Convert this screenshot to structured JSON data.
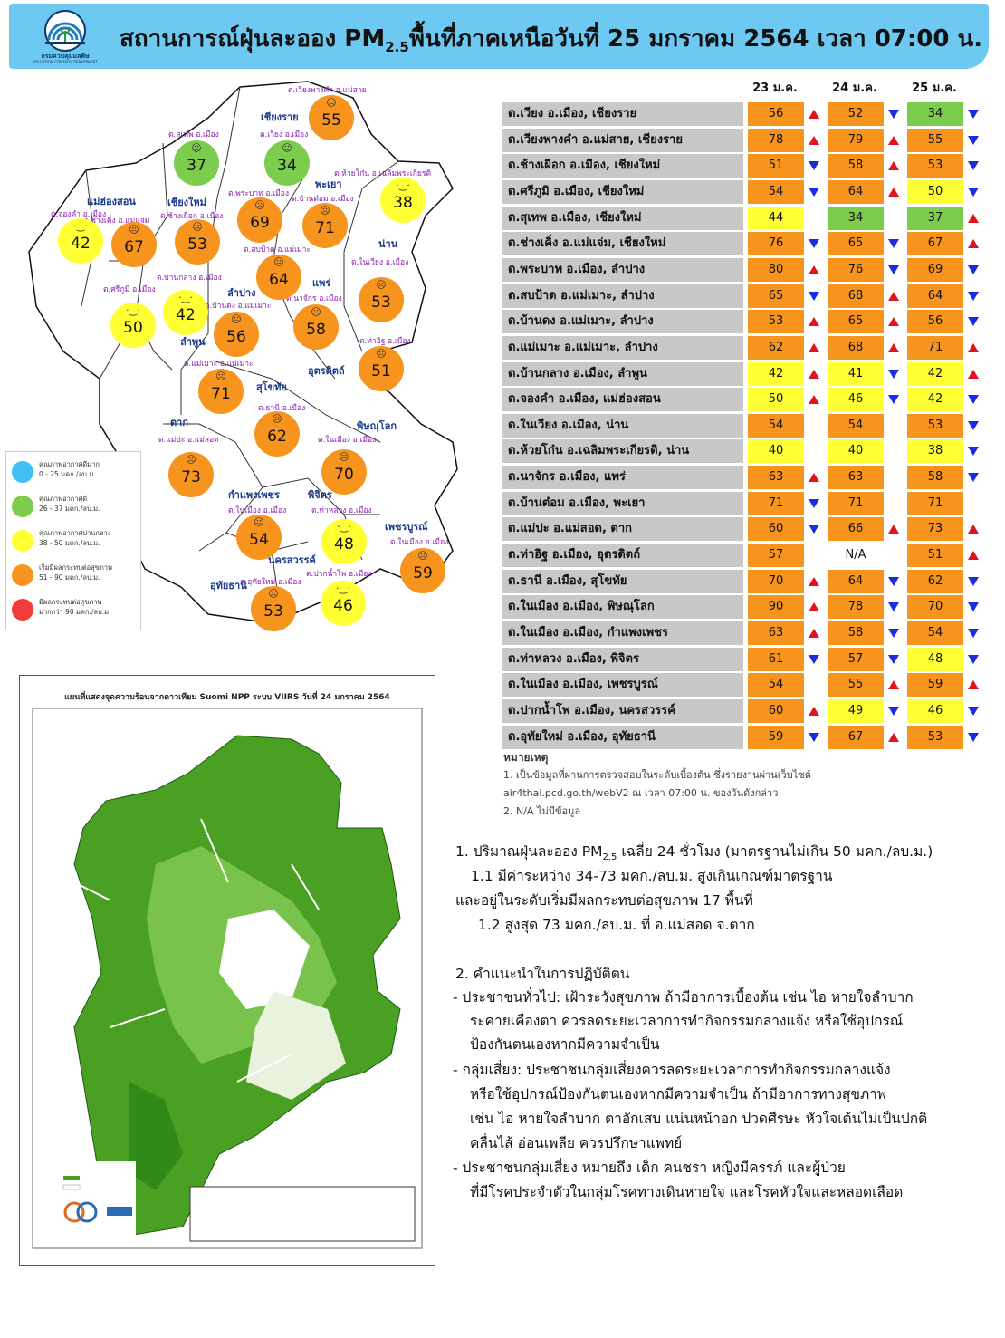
{
  "header": {
    "title_main": "สถานการณ์ฝุ่นละออง PM",
    "title_sub": "2.5",
    "title_rest": "พื้นที่ภาคเหนือวันที่ 25 มกราคม 2564 เวลา 07:00 น.",
    "logo_text": "กรมควบคุมมลพิษ",
    "logo_sub": "POLLUTION CONTROL DEPARTMENT"
  },
  "map": {
    "regions": [
      "เชียงราย",
      "พะเยา",
      "แม่ฮ่องสอน",
      "เชียงใหม่",
      "น่าน",
      "ลำปาง",
      "แพร่",
      "ลำพูน",
      "อุตรดิตถ์",
      "สุโขทัย",
      "ตาก",
      "พิษณุโลก",
      "กำแพงเพชร",
      "พิจิตร",
      "เพชรบูรณ์",
      "นครสวรรค์",
      "อุทัยธานี"
    ],
    "sites": [
      "ต.เวียงพางคำ อ.แม่สาย",
      "ต.สุเทพ อ.เมือง",
      "ต.เวียง อ.เมือง",
      "ต.ห้วยโก๋น อ.เฉลิมพระเกียรติ",
      "ต.พระบาท อ.เมือง",
      "ต.บ้านต๋อม อ.เมือง",
      "ต.จองคำ อ.เมือง",
      "ต.ช่างเคิ่ง อ.แม่แจ่ม",
      "ต.ช้างเผือก อ.เมือง",
      "ต.สบป้าด อ.แม่เมาะ",
      "ต.ในเวียง อ.เมือง",
      "ต.บ้านกลาง อ.เมือง",
      "ต.ศรีภูมิ อ.เมือง",
      "ต.บ้านดง อ.แม่เมาะ",
      "ต.นาจักร อ.เมือง",
      "ต.ท่าอิฐ อ.เมือง",
      "ต.แม่เมาะ อ.แม่เมาะ",
      "ต.ธานี อ.เมือง",
      "ต.แม่ปะ อ.แม่สอด",
      "ต.ในเมือง อ.เมือง",
      "ต.ในเมือง อ.เมือง",
      "ต.ท่าหลวง อ.เมือง",
      "ต.ในเมือง อ.เมือง",
      "ต.ปากน้ำโพ อ.เมือง",
      "ต.อุทัยใหม่ อ.เมือง"
    ],
    "bubbles": [
      {
        "value": "55",
        "level": "orange"
      },
      {
        "value": "37",
        "level": "green"
      },
      {
        "value": "34",
        "level": "green"
      },
      {
        "value": "38",
        "level": "yellow"
      },
      {
        "value": "42",
        "level": "yellow"
      },
      {
        "value": "67",
        "level": "orange"
      },
      {
        "value": "53",
        "level": "orange"
      },
      {
        "value": "69",
        "level": "orange"
      },
      {
        "value": "71",
        "level": "orange"
      },
      {
        "value": "64",
        "level": "orange"
      },
      {
        "value": "53",
        "level": "orange"
      },
      {
        "value": "50",
        "level": "yellow"
      },
      {
        "value": "42",
        "level": "yellow"
      },
      {
        "value": "56",
        "level": "orange"
      },
      {
        "value": "58",
        "level": "orange"
      },
      {
        "value": "51",
        "level": "orange"
      },
      {
        "value": "71",
        "level": "orange"
      },
      {
        "value": "62",
        "level": "orange"
      },
      {
        "value": "73",
        "level": "orange"
      },
      {
        "value": "70",
        "level": "orange"
      },
      {
        "value": "54",
        "level": "orange"
      },
      {
        "value": "48",
        "level": "yellow"
      },
      {
        "value": "59",
        "level": "orange"
      },
      {
        "value": "53",
        "level": "orange"
      },
      {
        "value": "46",
        "level": "yellow"
      }
    ]
  },
  "legend": [
    {
      "label": "คุณภาพอากาศดีมาก",
      "range": "0 - 25 มคก./ลบ.ม.",
      "color": "#3ec1f2"
    },
    {
      "label": "คุณภาพอากาศดี",
      "range": "26 - 37 มคก./ลบ.ม.",
      "color": "#7ccd4e"
    },
    {
      "label": "คุณภาพอากาศปานกลาง",
      "range": "38 - 50 มคก./ลบ.ม.",
      "color": "#ffff33"
    },
    {
      "label": "เริ่มมีผลกระทบต่อสุขภาพ",
      "range": "51 - 90 มคก./ลบ.ม.",
      "color": "#f7941d"
    },
    {
      "label": "มีผลกระทบต่อสุขภาพ",
      "range": "มากกว่า 90 มคก./ลบ.ม.",
      "color": "#f23b3b"
    }
  ],
  "table": {
    "days": [
      "23 ม.ค.",
      "24 ม.ค.",
      "25 ม.ค."
    ],
    "rows": [
      {
        "name": "ต.เวียง อ.เมือง, เชียงราย",
        "v": [
          "56",
          "52",
          "34"
        ],
        "a": [
          "up",
          "down",
          "down"
        ],
        "c": [
          "orange",
          "orange",
          "green"
        ]
      },
      {
        "name": "ต.เวียงพางคำ อ.แม่สาย, เชียงราย",
        "v": [
          "78",
          "79",
          "55"
        ],
        "a": [
          "up",
          "up",
          "down"
        ],
        "c": [
          "orange",
          "orange",
          "orange"
        ]
      },
      {
        "name": "ต.ช้างเผือก อ.เมือง, เชียงใหม่",
        "v": [
          "51",
          "58",
          "53"
        ],
        "a": [
          "down",
          "up",
          "down"
        ],
        "c": [
          "orange",
          "orange",
          "orange"
        ]
      },
      {
        "name": "ต.ศรีภูมิ อ.เมือง, เชียงใหม่",
        "v": [
          "54",
          "64",
          "50"
        ],
        "a": [
          "down",
          "up",
          "down"
        ],
        "c": [
          "orange",
          "orange",
          "yellow"
        ]
      },
      {
        "name": "ต.สุเทพ อ.เมือง, เชียงใหม่",
        "v": [
          "44",
          "34",
          "37"
        ],
        "a": [
          "",
          "",
          "up"
        ],
        "c": [
          "yellow",
          "green",
          "green"
        ]
      },
      {
        "name": "ต.ช่างเคิ่ง อ.แม่แจ่ม, เชียงใหม่",
        "v": [
          "76",
          "65",
          "67"
        ],
        "a": [
          "down",
          "down",
          "up"
        ],
        "c": [
          "orange",
          "orange",
          "orange"
        ]
      },
      {
        "name": "ต.พระบาท อ.เมือง, ลำปาง",
        "v": [
          "80",
          "76",
          "69"
        ],
        "a": [
          "up",
          "down",
          "down"
        ],
        "c": [
          "orange",
          "orange",
          "orange"
        ]
      },
      {
        "name": "ต.สบป้าด อ.แม่เมาะ, ลำปาง",
        "v": [
          "65",
          "68",
          "64"
        ],
        "a": [
          "down",
          "up",
          "down"
        ],
        "c": [
          "orange",
          "orange",
          "orange"
        ]
      },
      {
        "name": "ต.บ้านดง อ.แม่เมาะ, ลำปาง",
        "v": [
          "53",
          "65",
          "56"
        ],
        "a": [
          "up",
          "up",
          "down"
        ],
        "c": [
          "orange",
          "orange",
          "orange"
        ]
      },
      {
        "name": "ต.แม่เมาะ อ.แม่เมาะ, ลำปาง",
        "v": [
          "62",
          "68",
          "71"
        ],
        "a": [
          "up",
          "up",
          "up"
        ],
        "c": [
          "orange",
          "orange",
          "orange"
        ]
      },
      {
        "name": "ต.บ้านกลาง อ.เมือง, ลำพูน",
        "v": [
          "42",
          "41",
          "42"
        ],
        "a": [
          "up",
          "down",
          "up"
        ],
        "c": [
          "yellow",
          "yellow",
          "yellow"
        ]
      },
      {
        "name": "ต.จองคำ อ.เมือง, แม่ฮ่องสอน",
        "v": [
          "50",
          "46",
          "42"
        ],
        "a": [
          "up",
          "down",
          "down"
        ],
        "c": [
          "yellow",
          "yellow",
          "yellow"
        ]
      },
      {
        "name": "ต.ในเวียง อ.เมือง, น่าน",
        "v": [
          "54",
          "54",
          "53"
        ],
        "a": [
          "",
          "",
          "down"
        ],
        "c": [
          "orange",
          "orange",
          "orange"
        ]
      },
      {
        "name": "ต.ห้วยโก๋น อ.เฉลิมพระเกียรติ, น่าน",
        "v": [
          "40",
          "40",
          "38"
        ],
        "a": [
          "",
          "",
          "down"
        ],
        "c": [
          "yellow",
          "yellow",
          "yellow"
        ]
      },
      {
        "name": "ต.นาจักร อ.เมือง, แพร่",
        "v": [
          "63",
          "63",
          "58"
        ],
        "a": [
          "up",
          "",
          "down"
        ],
        "c": [
          "orange",
          "orange",
          "orange"
        ]
      },
      {
        "name": "ต.บ้านต๋อม อ.เมือง, พะเยา",
        "v": [
          "71",
          "71",
          "71"
        ],
        "a": [
          "down",
          "",
          ""
        ],
        "c": [
          "orange",
          "orange",
          "orange"
        ]
      },
      {
        "name": "ต.แม่ปะ อ.แม่สอด, ตาก",
        "v": [
          "60",
          "66",
          "73"
        ],
        "a": [
          "down",
          "up",
          "up"
        ],
        "c": [
          "orange",
          "orange",
          "orange"
        ]
      },
      {
        "name": "ต.ท่าอิฐ อ.เมือง, อุตรดิตถ์",
        "v": [
          "57",
          "N/A",
          "51"
        ],
        "a": [
          "",
          "",
          "up"
        ],
        "c": [
          "orange",
          "none",
          "orange"
        ]
      },
      {
        "name": "ต.ธานี อ.เมือง, สุโขทัย",
        "v": [
          "70",
          "64",
          "62"
        ],
        "a": [
          "up",
          "down",
          "down"
        ],
        "c": [
          "orange",
          "orange",
          "orange"
        ]
      },
      {
        "name": "ต.ในเมือง อ.เมือง, พิษณุโลก",
        "v": [
          "90",
          "78",
          "70"
        ],
        "a": [
          "up",
          "down",
          "down"
        ],
        "c": [
          "orange",
          "orange",
          "orange"
        ]
      },
      {
        "name": "ต.ในเมือง อ.เมือง, กำแพงเพชร",
        "v": [
          "63",
          "58",
          "54"
        ],
        "a": [
          "up",
          "down",
          "down"
        ],
        "c": [
          "orange",
          "orange",
          "orange"
        ]
      },
      {
        "name": "ต.ท่าหลวง อ.เมือง, พิจิตร",
        "v": [
          "61",
          "57",
          "48"
        ],
        "a": [
          "down",
          "down",
          "down"
        ],
        "c": [
          "orange",
          "orange",
          "yellow"
        ]
      },
      {
        "name": "ต.ในเมือง อ.เมือง, เพชรบูรณ์",
        "v": [
          "54",
          "55",
          "59"
        ],
        "a": [
          "",
          "up",
          "up"
        ],
        "c": [
          "orange",
          "orange",
          "orange"
        ]
      },
      {
        "name": "ต.ปากน้ำโพ อ.เมือง, นครสวรรค์",
        "v": [
          "60",
          "49",
          "46"
        ],
        "a": [
          "up",
          "down",
          "down"
        ],
        "c": [
          "orange",
          "yellow",
          "yellow"
        ]
      },
      {
        "name": "ต.อุทัยใหม่ อ.เมือง, อุทัยธานี",
        "v": [
          "59",
          "67",
          "53"
        ],
        "a": [
          "down",
          "up",
          "down"
        ],
        "c": [
          "orange",
          "orange",
          "orange"
        ]
      }
    ]
  },
  "notes": {
    "heading": "หมายเหตุ",
    "n1a": "1. เป็นข้อมูลที่ผ่านการตรวจสอบในระดับเบื้องต้น ซึ่งรายงานผ่านเว็บไซต์",
    "n1b": "air4thai.pcd.go.th/webV2 ณ เวลา 07:00 น. ของวันดังกล่าว",
    "n2": "2. N/A ไม่มีข้อมูล"
  },
  "hotspot_map": {
    "title": "แผนที่แสดงจุดความร้อนจากดาวเทียม Suomi NPP ระบบ VIIRS วันที่ 24 มกราคม 2564"
  },
  "summary": {
    "p1_main": "1. ปริมาณฝุ่นละออง PM",
    "p1_sub": "2.5",
    "p1_rest": " เฉลี่ย 24 ชั่วโมง (มาตรฐานไม่เกิน 50 มคก./ลบ.ม.)",
    "p1_1": "1.1 มีค่าระหว่าง 34-73 มคก./ลบ.ม. สูงเกินเกณฑ์มาตรฐาน",
    "p1_1b": "และอยู่ในระดับเริ่มมีผลกระทบต่อสุขภาพ 17 พื้นที่",
    "p1_2": "1.2 สูงสุด 73 มคก./ลบ.ม. ที่ อ.แม่สอด จ.ตาก",
    "p2": "2. คำแนะนำในการปฏิบัติตน",
    "b1a": "- ประชาชนทั่วไป: เฝ้าระวังสุขภาพ ถ้ามีอาการเบื้องต้น เช่น ไอ หายใจลำบาก",
    "b1b": "ระคายเคืองตา ควรลดระยะเวลาการทำกิจกรรมกลางแจ้ง หรือใช้อุปกรณ์",
    "b1c": "ป้องกันตนเองหากมีความจำเป็น",
    "b2a": "- กลุ่มเสี่ยง: ประชาชนกลุ่มเสี่ยงควรลดระยะเวลาการทำกิจกรรมกลางแจ้ง",
    "b2b": "หรือใช้อุปกรณ์ป้องกันตนเองหากมีความจำเป็น ถ้ามีอาการทางสุขภาพ",
    "b2c": "เช่น ไอ หายใจลำบาก ตาอักเสบ แน่นหน้าอก ปวดศีรษะ หัวใจเต้นไม่เป็นปกติ",
    "b2d": "คลื่นไส้ อ่อนเพลีย ควรปรึกษาแพทย์",
    "b3a": "- ประชาชนกลุ่มเสี่ยง หมายถึง เด็ก คนชรา หญิงมีครรภ์ และผู้ป่วย",
    "b3b": "ที่มีโรคประจำตัวในกลุ่มโรคทางเดินหายใจ และโรคหัวใจและหลอดเลือด"
  }
}
